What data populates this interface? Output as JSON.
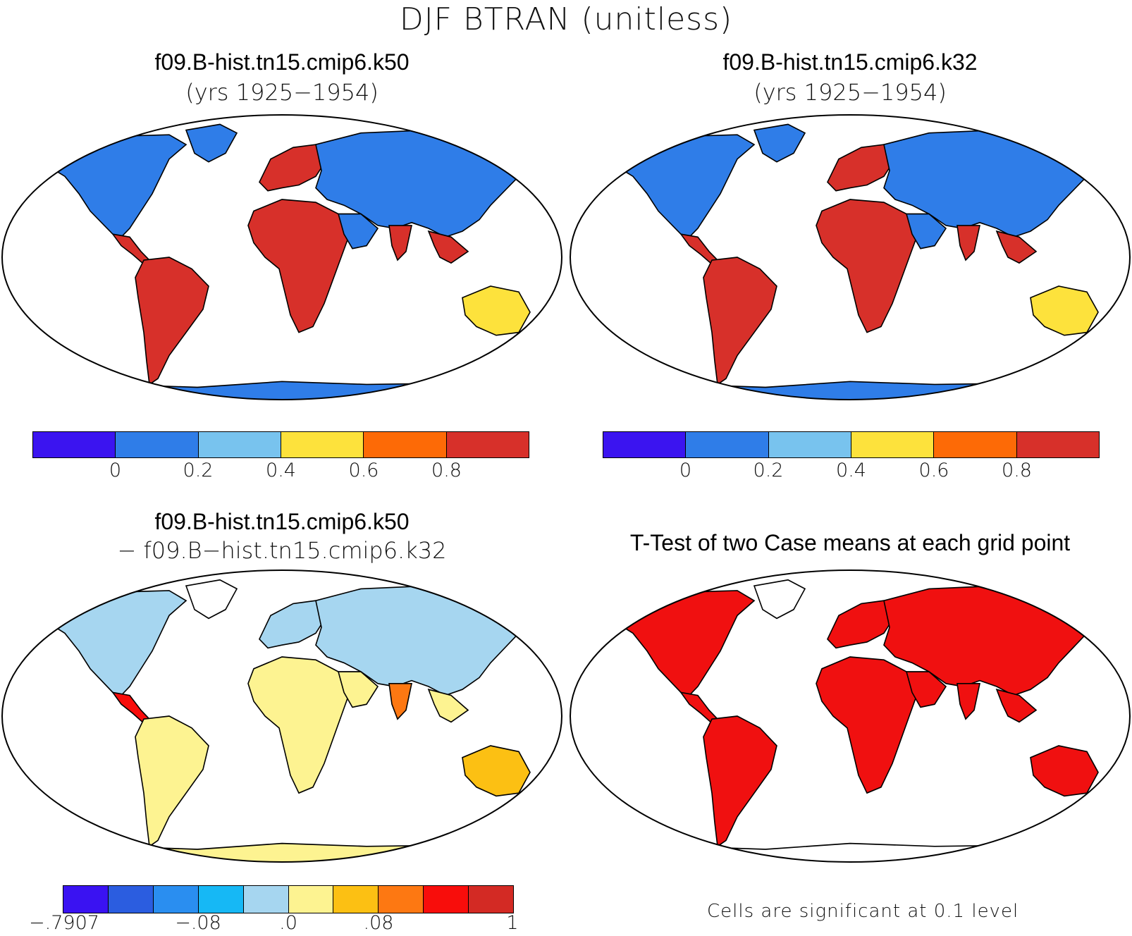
{
  "title": "DJF BTRAN (unitless)",
  "panels": [
    {
      "id": "k50",
      "title": "f09.B-hist.tn15.cmip6.k50",
      "subtitle": "(yrs 1925−1954)"
    },
    {
      "id": "k32",
      "title": "f09.B-hist.tn15.cmip6.k32",
      "subtitle": "(yrs 1925−1954)"
    },
    {
      "id": "diff",
      "title": "f09.B-hist.tn15.cmip6.k50",
      "subtitle": "− f09.B−hist.tn15.cmip6.k32"
    },
    {
      "id": "ttest",
      "title": "T-Test of two Case means at each grid point",
      "subtitle": ""
    }
  ],
  "colorbar_main": {
    "colors": [
      "#3b14f0",
      "#2f7de8",
      "#78c3ee",
      "#fde23c",
      "#fd6a06",
      "#d7302a"
    ],
    "tick_labels": [
      "0",
      "0.2",
      "0.4",
      "0.6",
      "0.8"
    ]
  },
  "colorbar_diff": {
    "colors": [
      "#3a12f2",
      "#2b5de0",
      "#2a8ef0",
      "#16b8f5",
      "#a6d6f0",
      "#fdf391",
      "#fcc013",
      "#fd7812",
      "#f80d0b",
      "#d32a24"
    ],
    "tick_labels": [
      "−.7907",
      "−.08",
      ".0",
      ".08",
      "1"
    ]
  },
  "ttest_note": "Cells are significant at 0.1 level",
  "significance_color": "#f01010"
}
